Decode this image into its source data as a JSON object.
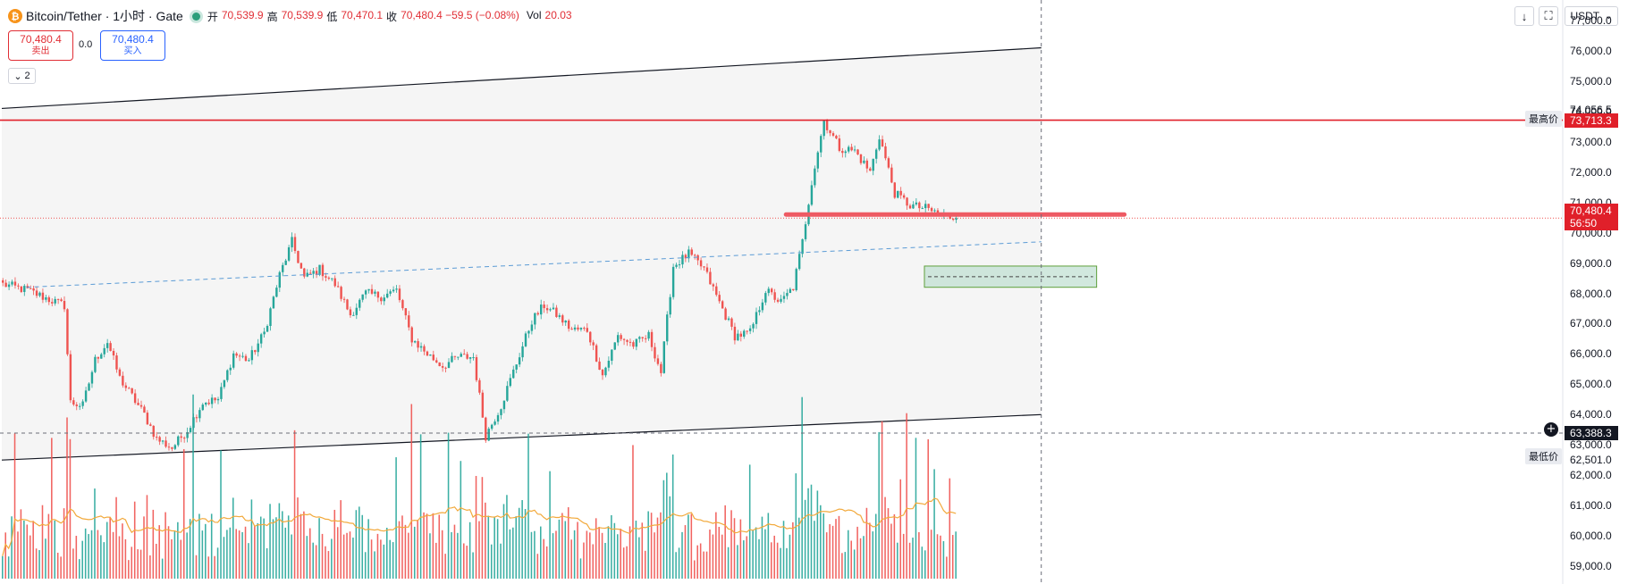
{
  "header": {
    "coin_icon": "bitcoin-icon",
    "title": "Bitcoin/Tether · 1小时 · Gate",
    "ohlc": [
      {
        "k": "开",
        "v": "70,539.9"
      },
      {
        "k": "高",
        "v": "70,539.9"
      },
      {
        "k": "低",
        "v": "70,470.1"
      },
      {
        "k": "收",
        "v": "70,480.4 −59.5 (−0.08%)"
      }
    ],
    "vol_label": "Vol",
    "vol_value": "20.03"
  },
  "trade": {
    "sell_price": "70,480.4",
    "sell_label": "卖出",
    "spread": "0.0",
    "buy_price": "70,480.4",
    "buy_label": "买入"
  },
  "collapse_count": "2",
  "toolbar": {
    "download_icon": "download-icon",
    "fullscreen_icon": "fullscreen-icon",
    "currency": "USDT"
  },
  "colors": {
    "up": "#26a69a",
    "down": "#ef5350",
    "line_red": "#e0202a",
    "accent": "#2962ff"
  },
  "chart_data": {
    "type": "candlestick",
    "timeframe": "1小时",
    "ylim": [
      58500,
      77500
    ],
    "y_ticks": [
      59000,
      60000,
      61000,
      62000,
      63000,
      64000,
      65000,
      66000,
      67000,
      68000,
      69000,
      70000,
      71000,
      72000,
      73000,
      74000,
      75000,
      76000,
      77000
    ],
    "y_tick_labels": [
      "59,000.0",
      "60,000.0",
      "61,000.0",
      "62,000.0",
      "63,000.0",
      "64,000.0",
      "65,000.0",
      "66,000.0",
      "67,000.0",
      "68,000.0",
      "69,000.0",
      "70,000.0",
      "71,000.0",
      "72,000.0",
      "73,000.0",
      "74,000.0",
      "75,000.0",
      "76,000.0",
      "77,000.0"
    ],
    "price_path": [
      [
        0,
        68300
      ],
      [
        8,
        68100
      ],
      [
        15,
        67800
      ],
      [
        20,
        67600
      ],
      [
        22,
        64400
      ],
      [
        26,
        64300
      ],
      [
        30,
        65800
      ],
      [
        34,
        66400
      ],
      [
        38,
        65200
      ],
      [
        42,
        64600
      ],
      [
        46,
        64000
      ],
      [
        50,
        63200
      ],
      [
        55,
        62900
      ],
      [
        60,
        63500
      ],
      [
        65,
        64400
      ],
      [
        70,
        64500
      ],
      [
        75,
        66000
      ],
      [
        80,
        65800
      ],
      [
        85,
        66700
      ],
      [
        90,
        68600
      ],
      [
        94,
        69700
      ],
      [
        98,
        68500
      ],
      [
        103,
        68800
      ],
      [
        108,
        68300
      ],
      [
        113,
        67300
      ],
      [
        118,
        68000
      ],
      [
        123,
        67900
      ],
      [
        128,
        68100
      ],
      [
        133,
        66500
      ],
      [
        138,
        66000
      ],
      [
        143,
        65600
      ],
      [
        148,
        65900
      ],
      [
        153,
        65900
      ],
      [
        157,
        63300
      ],
      [
        162,
        64300
      ],
      [
        167,
        65700
      ],
      [
        172,
        67100
      ],
      [
        176,
        67600
      ],
      [
        180,
        67300
      ],
      [
        185,
        66800
      ],
      [
        190,
        66800
      ],
      [
        195,
        65300
      ],
      [
        200,
        66600
      ],
      [
        205,
        66300
      ],
      [
        210,
        66600
      ],
      [
        214,
        65400
      ],
      [
        218,
        68900
      ],
      [
        223,
        69300
      ],
      [
        228,
        68800
      ],
      [
        233,
        67700
      ],
      [
        238,
        66600
      ],
      [
        243,
        66700
      ],
      [
        248,
        68100
      ],
      [
        253,
        67700
      ],
      [
        257,
        68200
      ],
      [
        260,
        69700
      ],
      [
        263,
        71700
      ],
      [
        267,
        73700
      ],
      [
        272,
        72800
      ],
      [
        277,
        72700
      ],
      [
        282,
        72000
      ],
      [
        285,
        73200
      ],
      [
        290,
        71300
      ],
      [
        295,
        70900
      ],
      [
        300,
        70800
      ],
      [
        305,
        70600
      ],
      [
        310,
        70480
      ]
    ],
    "candle_count": 311,
    "last": 70480.4,
    "countdown": "56:50",
    "high": {
      "label": "最高价",
      "value": 74056.5,
      "text": "74,056.5"
    },
    "low": {
      "label": "最低价",
      "value": 62501.0,
      "text": "62,501.0"
    },
    "horizontal_line": {
      "value": 73713.3,
      "text": "73,713.3"
    },
    "crosshair": {
      "value": 63388.3,
      "text": "63,388.3",
      "bar_index": 338
    },
    "last_text": "70,480.4",
    "channel_upper": {
      "from": [
        0,
        74100
      ],
      "to": [
        338,
        76100
      ]
    },
    "channel_lower": {
      "from": [
        0,
        62500
      ],
      "to": [
        338,
        64000
      ]
    },
    "dashed_trend": {
      "from": [
        8,
        68200
      ],
      "to": [
        338,
        69700
      ]
    },
    "support_line": {
      "from_bar": 255,
      "to_bar": 365,
      "value": 70600
    },
    "zone": {
      "from_bar": 300,
      "to_bar": 356,
      "top": 68900,
      "bottom": 68200,
      "mid": 68550
    },
    "volume_ma_period": 20
  }
}
